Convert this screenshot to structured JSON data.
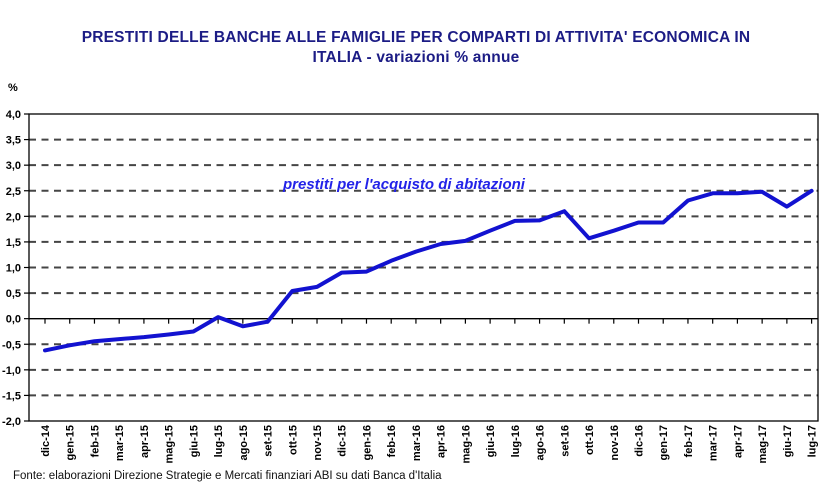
{
  "header": {
    "title_line1": "PRESTITI DELLE BANCHE ALLE FAMIGLIE PER COMPARTI DI ATTIVITA' ECONOMICA IN",
    "title_line2": "ITALIA - variazioni % annue",
    "title_color": "#1c1c85"
  },
  "chart_data": {
    "type": "line",
    "title": "PRESTITI DELLE BANCHE ALLE FAMIGLIE PER COMPARTI DI ATTIVITA' ECONOMICA IN ITALIA - variazioni % annue",
    "unit_label": "%",
    "annotation": "prestiti per l'acquisto di abitazioni",
    "annotation_color": "#2323e8",
    "line_color": "#1212d0",
    "legend_position": "none",
    "grid": "horizontal-dashed",
    "ylim": [
      -2,
      4
    ],
    "categories": [
      "dic-14",
      "gen-15",
      "feb-15",
      "mar-15",
      "apr-15",
      "mag-15",
      "giu-15",
      "lug-15",
      "ago-15",
      "set-15",
      "ott-15",
      "nov-15",
      "dic-15",
      "gen-16",
      "feb-16",
      "mar-16",
      "apr-16",
      "mag-16",
      "giu-16",
      "lug-16",
      "ago-16",
      "set-16",
      "ott-16",
      "nov-16",
      "dic-16",
      "gen-17",
      "feb-17",
      "mar-17",
      "apr-17",
      "mag-17",
      "giu-17",
      "lug-17"
    ],
    "values": [
      -0.62,
      -0.52,
      -0.44,
      -0.4,
      -0.36,
      -0.31,
      -0.25,
      0.03,
      -0.15,
      -0.06,
      0.54,
      0.62,
      0.9,
      0.92,
      1.13,
      1.31,
      1.46,
      1.52,
      1.72,
      1.91,
      1.92,
      2.1,
      1.57,
      1.72,
      1.88,
      1.88,
      2.31,
      2.45,
      2.45,
      2.48,
      2.19,
      2.5
    ],
    "y_ticks": [
      {
        "v": 4.0,
        "label": "4,0"
      },
      {
        "v": 3.5,
        "label": "3,5"
      },
      {
        "v": 3.0,
        "label": "3,0"
      },
      {
        "v": 2.5,
        "label": "2,5"
      },
      {
        "v": 2.0,
        "label": "2,0"
      },
      {
        "v": 1.5,
        "label": "1,5"
      },
      {
        "v": 1.0,
        "label": "1,0"
      },
      {
        "v": 0.5,
        "label": "0,5"
      },
      {
        "v": 0.0,
        "label": "0,0"
      },
      {
        "v": -0.5,
        "label": "-0,5"
      },
      {
        "v": -1.0,
        "label": "-1,0"
      },
      {
        "v": -1.5,
        "label": "-1,5"
      },
      {
        "v": -2.0,
        "label": "-2,0"
      }
    ]
  },
  "footer": {
    "source": "Fonte: elaborazioni  Direzione Strategie e Mercati finanziari ABI su dati Banca d'Italia"
  }
}
